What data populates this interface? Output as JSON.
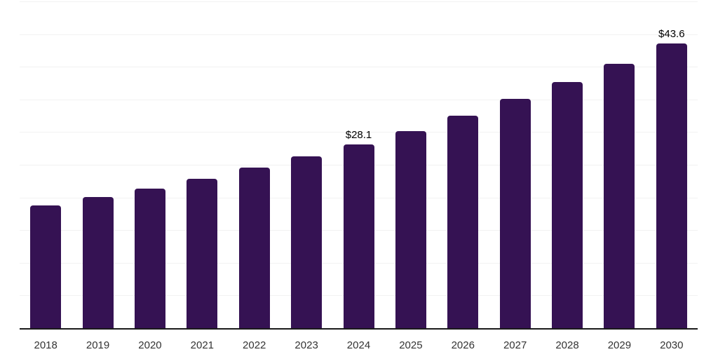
{
  "chart_data": {
    "type": "bar",
    "categories": [
      "2018",
      "2019",
      "2020",
      "2021",
      "2022",
      "2023",
      "2024",
      "2025",
      "2026",
      "2027",
      "2028",
      "2029",
      "2030"
    ],
    "values": [
      18.8,
      20.1,
      21.4,
      22.9,
      24.6,
      26.3,
      28.1,
      30.2,
      32.5,
      35.1,
      37.7,
      40.5,
      43.6
    ],
    "bar_labels": [
      "",
      "",
      "",
      "",
      "",
      "",
      "$28.1",
      "",
      "",
      "",
      "",
      "",
      "$43.6"
    ],
    "ylim": [
      0,
      50
    ],
    "grid_step": 5,
    "grid": "horizontal",
    "y_tick_labels": "none",
    "legend_position": "none",
    "colors": {
      "bar": "#351253",
      "axis_line": "#1a1a1a",
      "gridline": "#f2f2f2",
      "bar_label_text": "#000000",
      "x_tick_text": "#333333",
      "background": "#ffffff"
    }
  }
}
